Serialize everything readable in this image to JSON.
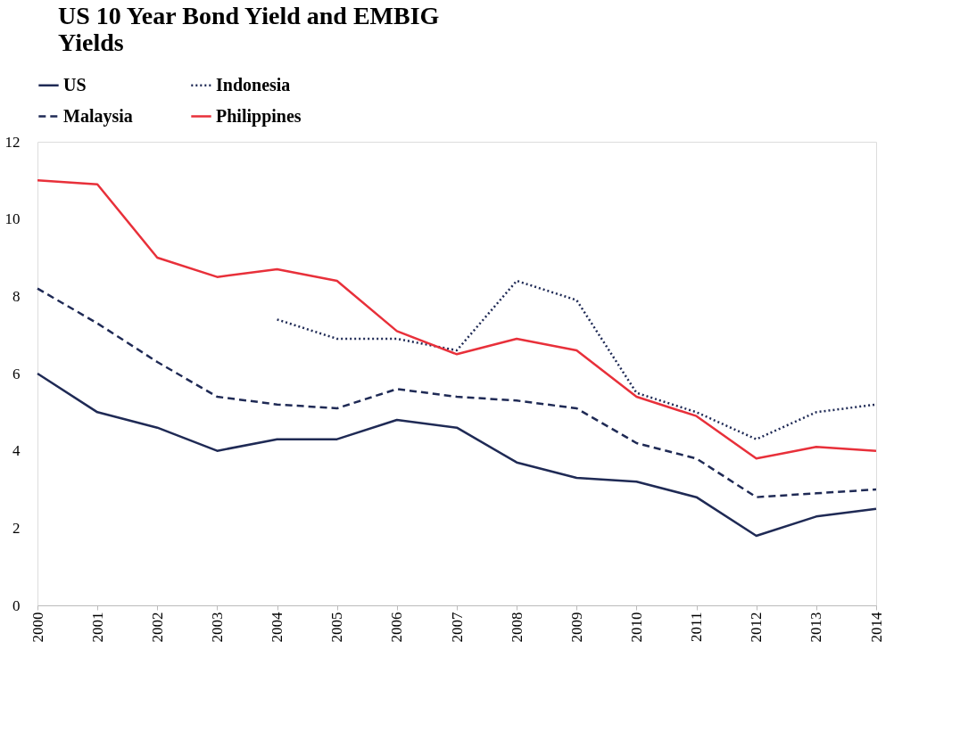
{
  "chart_data": {
    "type": "line",
    "title": [
      "US 10 Year Bond Yield and EMBIG",
      "Yields"
    ],
    "categories": [
      "2000",
      "2001",
      "2002",
      "2003",
      "2004",
      "2005",
      "2006",
      "2007",
      "2008",
      "2009",
      "2010",
      "2011",
      "2012",
      "2013",
      "2014"
    ],
    "series": [
      {
        "name": "US",
        "color": "#1f2a55",
        "line_style": "solid",
        "values": [
          6.0,
          5.0,
          4.6,
          4.0,
          4.3,
          4.3,
          4.8,
          4.6,
          3.7,
          3.3,
          3.2,
          2.8,
          1.8,
          2.3,
          2.5
        ]
      },
      {
        "name": "Indonesia",
        "color": "#1f2a55",
        "line_style": "dotted",
        "values": [
          null,
          null,
          null,
          null,
          7.4,
          6.9,
          6.9,
          6.6,
          8.4,
          7.9,
          5.5,
          5.0,
          4.3,
          5.0,
          5.2
        ]
      },
      {
        "name": "Malaysia",
        "color": "#1f2a55",
        "line_style": "dashed",
        "values": [
          8.2,
          7.3,
          6.3,
          5.4,
          5.2,
          5.1,
          5.6,
          5.4,
          5.3,
          5.1,
          4.2,
          3.8,
          2.8,
          2.9,
          3.0
        ]
      },
      {
        "name": "Philippines",
        "color": "#e8303a",
        "line_style": "solid",
        "values": [
          11.0,
          10.9,
          9.0,
          8.5,
          8.7,
          8.4,
          7.1,
          6.5,
          6.9,
          6.6,
          5.4,
          4.9,
          3.8,
          4.1,
          4.0
        ]
      }
    ],
    "ylim": [
      0,
      12
    ],
    "yticks": [
      0,
      2,
      4,
      6,
      8,
      10,
      12
    ],
    "grid": false,
    "legend": "top",
    "marker": "none"
  }
}
